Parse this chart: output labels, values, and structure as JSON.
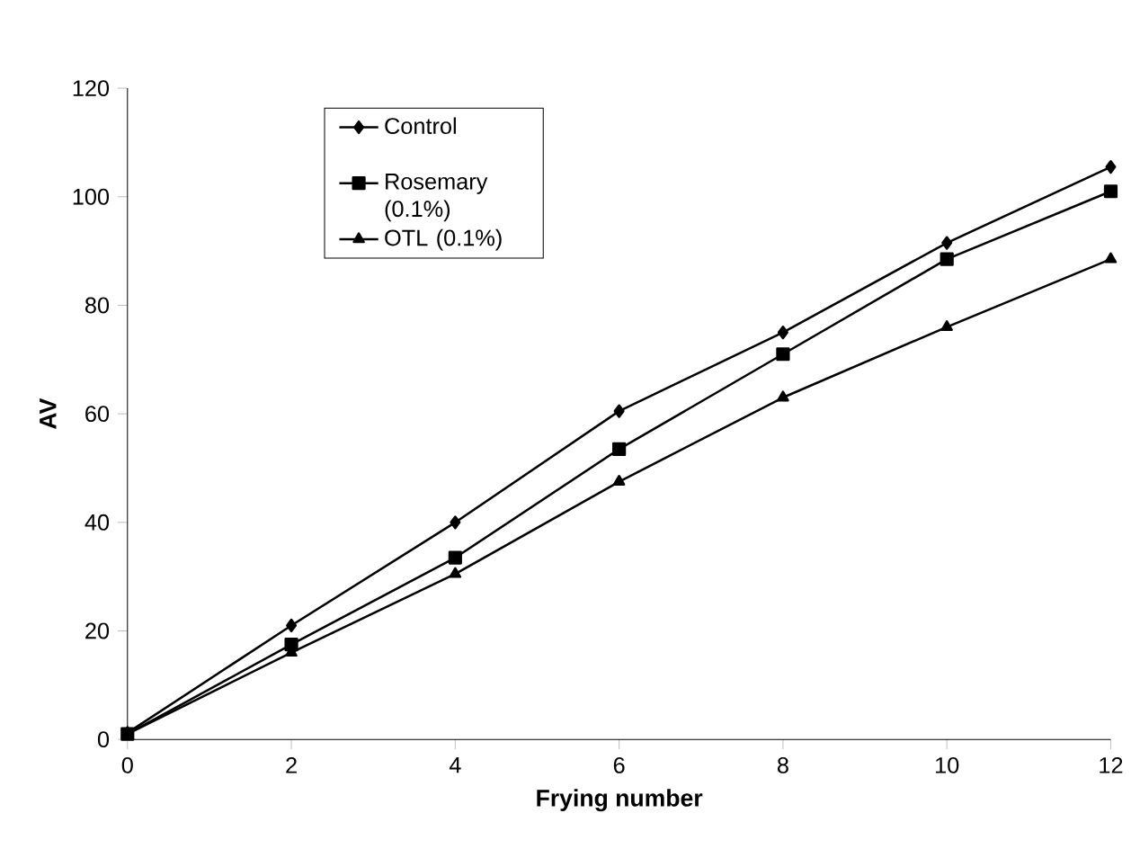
{
  "chart_data": {
    "type": "line",
    "xlabel": "Frying number",
    "ylabel": "AV",
    "x": [
      0,
      2,
      4,
      6,
      8,
      10,
      12
    ],
    "series": [
      {
        "name": "Control",
        "color": "#000000",
        "marker": "diamond",
        "values": [
          1.2,
          21,
          40,
          60.5,
          75,
          91.5,
          105.5
        ]
      },
      {
        "name": "Rosemary (0.1%)",
        "color": "#000000",
        "marker": "square",
        "values": [
          1,
          17.5,
          33.5,
          53.5,
          71,
          88.5,
          101
        ]
      },
      {
        "name": "OTL (0.1%)",
        "color": "#000000",
        "marker": "triangle",
        "values": [
          1,
          16,
          30.5,
          47.5,
          63,
          76,
          88.5
        ]
      }
    ],
    "xlim": [
      0,
      12
    ],
    "xticks": [
      0,
      2,
      4,
      6,
      8,
      10,
      12
    ],
    "ylim": [
      0,
      120
    ],
    "yticks": [
      0,
      20,
      40,
      60,
      80,
      100,
      120
    ],
    "legend": "top left",
    "grid": false,
    "line_style": "solid"
  }
}
